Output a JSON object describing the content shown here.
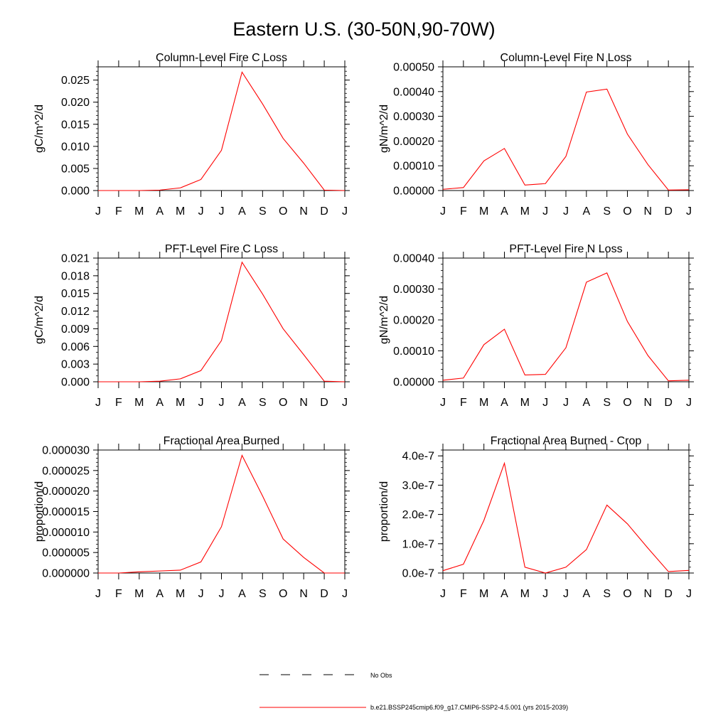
{
  "figure_title": "Eastern U.S. (30-50N,90-70W)",
  "colors": {
    "series": "#ff0000",
    "axis": "#000000",
    "obs": "#000000"
  },
  "legend": {
    "obs_label": "No Obs",
    "model_label": "b.e21.BSSP245cmip6.f09_g17.CMIP6-SSP2-4.5.001 (yrs 2015-2039)"
  },
  "chart_data": [
    {
      "type": "line",
      "title": "Column-Level Fire C Loss",
      "ylabel": "gC/m^2/d",
      "xlabel": "",
      "categories": [
        "J",
        "F",
        "M",
        "A",
        "M",
        "J",
        "J",
        "A",
        "S",
        "O",
        "N",
        "D",
        "J"
      ],
      "ylim": [
        0,
        0.028
      ],
      "yticks": [
        0,
        0.005,
        0.01,
        0.015,
        0.02,
        0.025
      ],
      "ytick_labels": [
        "0.000",
        "0.005",
        "0.010",
        "0.015",
        "0.020",
        "0.025"
      ],
      "minor_step": 0.001,
      "series": [
        {
          "name": "b.e21.BSSP245cmip6.f09_g17.CMIP6-SSP2-4.5.001 (yrs 2015-2039)",
          "values": [
            0.0,
            0.0,
            0.0,
            0.0001,
            0.0006,
            0.0025,
            0.0091,
            0.0268,
            0.0196,
            0.0118,
            0.0062,
            0.0001,
            0.0
          ]
        }
      ]
    },
    {
      "type": "line",
      "title": "Column-Level Fire N Loss",
      "ylabel": "gN/m^2/d",
      "xlabel": "",
      "categories": [
        "J",
        "F",
        "M",
        "A",
        "M",
        "J",
        "J",
        "A",
        "S",
        "O",
        "N",
        "D",
        "J"
      ],
      "ylim": [
        0,
        0.0005
      ],
      "yticks": [
        0,
        0.0001,
        0.0002,
        0.0003,
        0.0004,
        0.0005
      ],
      "ytick_labels": [
        "0.00000",
        "0.00010",
        "0.00020",
        "0.00030",
        "0.00040",
        "0.00050"
      ],
      "minor_step": 2e-05,
      "series": [
        {
          "name": "b.e21.BSSP245cmip6.f09_g17.CMIP6-SSP2-4.5.001 (yrs 2015-2039)",
          "values": [
            5e-06,
            1.2e-05,
            0.00012,
            0.00017,
            2.2e-05,
            2.8e-05,
            0.000138,
            0.000398,
            0.00041,
            0.000228,
            0.000105,
            2e-06,
            3e-06
          ]
        }
      ]
    },
    {
      "type": "line",
      "title": "PFT-Level Fire C Loss",
      "ylabel": "gC/m^2/d",
      "xlabel": "",
      "categories": [
        "J",
        "F",
        "M",
        "A",
        "M",
        "J",
        "J",
        "A",
        "S",
        "O",
        "N",
        "D",
        "J"
      ],
      "ylim": [
        0,
        0.021
      ],
      "yticks": [
        0,
        0.003,
        0.006,
        0.009,
        0.012,
        0.015,
        0.018,
        0.021
      ],
      "ytick_labels": [
        "0.000",
        "0.003",
        "0.006",
        "0.009",
        "0.012",
        "0.015",
        "0.018",
        "0.021"
      ],
      "minor_step": 0.001,
      "series": [
        {
          "name": "b.e21.BSSP245cmip6.f09_g17.CMIP6-SSP2-4.5.001 (yrs 2015-2039)",
          "values": [
            0.0,
            0.0,
            0.0,
            0.0001,
            0.0005,
            0.0019,
            0.007,
            0.0203,
            0.0149,
            0.009,
            0.0046,
            0.0001,
            0.0
          ]
        }
      ]
    },
    {
      "type": "line",
      "title": "PFT-Level Fire N Loss",
      "ylabel": "gN/m^2/d",
      "xlabel": "",
      "categories": [
        "J",
        "F",
        "M",
        "A",
        "M",
        "J",
        "J",
        "A",
        "S",
        "O",
        "N",
        "D",
        "J"
      ],
      "ylim": [
        0,
        0.0004
      ],
      "yticks": [
        0,
        0.0001,
        0.0002,
        0.0003,
        0.0004
      ],
      "ytick_labels": [
        "0.00000",
        "0.00010",
        "0.00020",
        "0.00030",
        "0.00040"
      ],
      "minor_step": 2e-05,
      "series": [
        {
          "name": "b.e21.BSSP245cmip6.f09_g17.CMIP6-SSP2-4.5.001 (yrs 2015-2039)",
          "values": [
            5e-06,
            1.2e-05,
            0.00012,
            0.00017,
            2.2e-05,
            2.4e-05,
            0.00011,
            0.000322,
            0.000352,
            0.000195,
            8.5e-05,
            3e-06,
            5e-06
          ]
        }
      ]
    },
    {
      "type": "line",
      "title": "Fractional Area Burned",
      "ylabel": "proportion/d",
      "xlabel": "",
      "categories": [
        "J",
        "F",
        "M",
        "A",
        "M",
        "J",
        "J",
        "A",
        "S",
        "O",
        "N",
        "D",
        "J"
      ],
      "ylim": [
        0,
        3e-05
      ],
      "yticks": [
        0,
        5e-06,
        1e-05,
        1.5e-05,
        2e-05,
        2.5e-05,
        3e-05
      ],
      "ytick_labels": [
        "0.000000",
        "0.000005",
        "0.000010",
        "0.000015",
        "0.000020",
        "0.000025",
        "0.000030"
      ],
      "minor_step": 1e-06,
      "series": [
        {
          "name": "b.e21.BSSP245cmip6.f09_g17.CMIP6-SSP2-4.5.001 (yrs 2015-2039)",
          "values": [
            0.0,
            0.0,
            3e-07,
            5e-07,
            7e-07,
            2.7e-06,
            1.13e-05,
            2.87e-05,
            1.88e-05,
            8.3e-06,
            3.8e-06,
            0.0,
            0.0
          ]
        }
      ]
    },
    {
      "type": "line",
      "title": "Fractional Area Burned - Crop",
      "ylabel": "proportion/d",
      "xlabel": "",
      "categories": [
        "J",
        "F",
        "M",
        "A",
        "M",
        "J",
        "J",
        "A",
        "S",
        "O",
        "N",
        "D",
        "J"
      ],
      "ylim": [
        0,
        4.2e-07
      ],
      "yticks": [
        0,
        1e-07,
        2e-07,
        3e-07,
        4e-07
      ],
      "ytick_labels": [
        "0.0e-7",
        "1.0e-7",
        "2.0e-7",
        "3.0e-7",
        "4.0e-7"
      ],
      "minor_step": 2e-08,
      "series": [
        {
          "name": "b.e21.BSSP245cmip6.f09_g17.CMIP6-SSP2-4.5.001 (yrs 2015-2039)",
          "values": [
            8e-09,
            3e-08,
            1.8e-07,
            3.75e-07,
            2e-08,
            0.0,
            2e-08,
            8e-08,
            2.32e-07,
            1.68e-07,
            8.5e-08,
            5e-09,
            9e-09
          ]
        }
      ]
    }
  ]
}
